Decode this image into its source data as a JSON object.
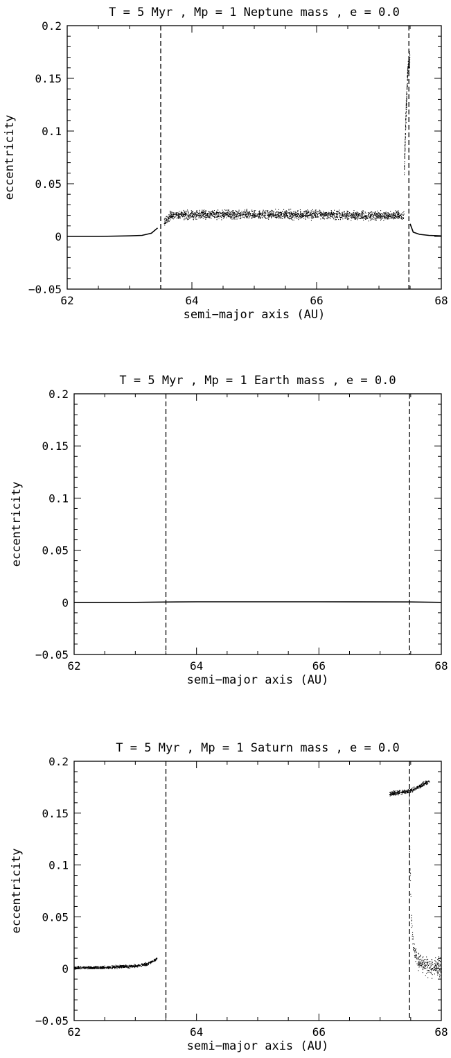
{
  "chart_data": [
    {
      "type": "scatter",
      "title": "T = 5 Myr , Mp = 1 Neptune mass , e = 0.0",
      "xlabel": "semi−major axis (AU)",
      "ylabel": "eccentricity",
      "xlim": [
        62,
        68
      ],
      "ylim": [
        -0.05,
        0.2
      ],
      "xticks": [
        62,
        64,
        66,
        68
      ],
      "xtick_labels": [
        "62",
        "64",
        "66",
        "68"
      ],
      "yticks": [
        -0.05,
        0,
        0.05,
        0.1,
        0.15,
        0.2
      ],
      "ytick_labels": [
        "−0.05",
        "0",
        "0.05",
        "0.1",
        "0.15",
        "0.2"
      ],
      "grid": false,
      "vlines": [
        63.5,
        67.48
      ],
      "series": [
        {
          "style": "line",
          "x": [
            62.0,
            62.5,
            63.0,
            63.2,
            63.35,
            63.45
          ],
          "y": [
            0.0,
            0.0,
            0.0005,
            0.001,
            0.003,
            0.008
          ]
        },
        {
          "style": "band",
          "x": [
            63.55,
            63.65,
            64.0,
            65.0,
            66.0,
            67.0,
            67.4
          ],
          "y": [
            0.014,
            0.02,
            0.021,
            0.021,
            0.021,
            0.02,
            0.02
          ],
          "spread": 0.006
        },
        {
          "style": "band",
          "x": [
            67.4,
            67.43,
            67.46,
            67.49
          ],
          "y": [
            0.06,
            0.12,
            0.16,
            0.17
          ],
          "spread": 0.012
        },
        {
          "style": "line",
          "x": [
            67.5,
            67.55,
            67.65,
            67.8,
            68.0
          ],
          "y": [
            0.012,
            0.004,
            0.002,
            0.001,
            0.0005
          ]
        }
      ]
    },
    {
      "type": "scatter",
      "title": "T = 5 Myr , Mp = 1 Earth mass , e = 0.0",
      "xlabel": "semi−major axis (AU)",
      "ylabel": "eccentricity",
      "xlim": [
        62,
        68
      ],
      "ylim": [
        -0.05,
        0.2
      ],
      "xticks": [
        62,
        64,
        66,
        68
      ],
      "xtick_labels": [
        "62",
        "64",
        "66",
        "68"
      ],
      "yticks": [
        -0.05,
        0,
        0.05,
        0.1,
        0.15,
        0.2
      ],
      "ytick_labels": [
        "−0.05",
        "0",
        "0.05",
        "0.1",
        "0.15",
        "0.2"
      ],
      "grid": false,
      "vlines": [
        63.5,
        67.48
      ],
      "series": [
        {
          "style": "line",
          "x": [
            62.0,
            63.0,
            63.5,
            64.0,
            66.0,
            67.48,
            68.0
          ],
          "y": [
            0.0,
            0.0,
            0.0003,
            0.0005,
            0.0005,
            0.0004,
            0.0
          ]
        }
      ]
    },
    {
      "type": "scatter",
      "title": "T = 5 Myr , Mp = 1 Saturn mass , e = 0.0",
      "xlabel": "semi−major axis (AU)",
      "ylabel": "eccentricity",
      "xlim": [
        62,
        68
      ],
      "ylim": [
        -0.05,
        0.2
      ],
      "xticks": [
        62,
        64,
        66,
        68
      ],
      "xtick_labels": [
        "62",
        "64",
        "66",
        "68"
      ],
      "yticks": [
        -0.05,
        0,
        0.05,
        0.1,
        0.15,
        0.2
      ],
      "ytick_labels": [
        "−0.05",
        "0",
        "0.05",
        "0.1",
        "0.15",
        "0.2"
      ],
      "grid": false,
      "vlines": [
        63.5,
        67.48
      ],
      "series": [
        {
          "style": "band",
          "x": [
            62.0,
            62.5,
            63.0,
            63.2,
            63.35
          ],
          "y": [
            0.001,
            0.0015,
            0.003,
            0.005,
            0.01
          ],
          "spread": 0.002
        },
        {
          "style": "band",
          "x": [
            67.47,
            67.48,
            67.5,
            67.53,
            67.6,
            67.75,
            68.0
          ],
          "y": [
            0.16,
            0.11,
            0.06,
            0.025,
            0.008,
            0.003,
            0.001
          ],
          "spread": 0.012
        },
        {
          "style": "band",
          "x": [
            67.15,
            67.3,
            67.5,
            67.7,
            67.8
          ],
          "y": [
            0.169,
            0.17,
            0.172,
            0.178,
            0.181
          ],
          "spread": 0.003
        }
      ]
    }
  ]
}
